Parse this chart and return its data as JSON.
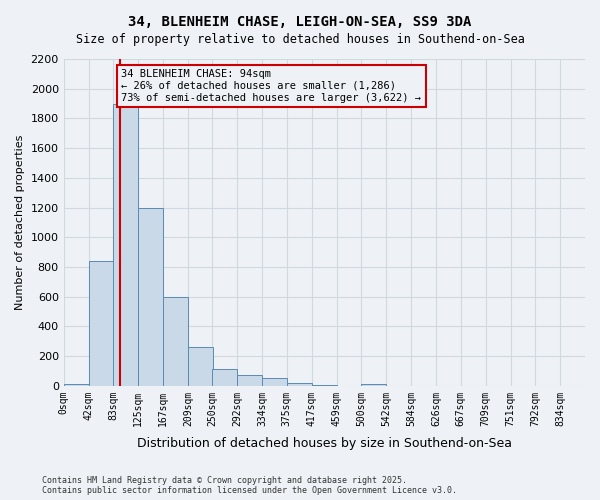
{
  "title1": "34, BLENHEIM CHASE, LEIGH-ON-SEA, SS9 3DA",
  "title2": "Size of property relative to detached houses in Southend-on-Sea",
  "xlabel": "Distribution of detached houses by size in Southend-on-Sea",
  "ylabel": "Number of detached properties",
  "footnote": "Contains HM Land Registry data © Crown copyright and database right 2025.\nContains public sector information licensed under the Open Government Licence v3.0.",
  "bin_labels": [
    "0sqm",
    "42sqm",
    "83sqm",
    "125sqm",
    "167sqm",
    "209sqm",
    "250sqm",
    "292sqm",
    "334sqm",
    "375sqm",
    "417sqm",
    "459sqm",
    "500sqm",
    "542sqm",
    "584sqm",
    "626sqm",
    "667sqm",
    "709sqm",
    "751sqm",
    "792sqm",
    "834sqm"
  ],
  "bin_edges": [
    0,
    42,
    83,
    125,
    167,
    209,
    250,
    292,
    334,
    375,
    417,
    459,
    500,
    542,
    584,
    626,
    667,
    709,
    751,
    792,
    834
  ],
  "bar_values": [
    10,
    840,
    1900,
    1200,
    600,
    260,
    110,
    70,
    50,
    20,
    5,
    0,
    10,
    0,
    0,
    0,
    0,
    0,
    0,
    0
  ],
  "bar_color": "#c9d9e8",
  "bar_edge_color": "#5a8ab5",
  "grid_color": "#d0d8e0",
  "bg_color": "#eef2f7",
  "red_line_x": 94,
  "red_line_color": "#cc0000",
  "annotation_text": "34 BLENHEIM CHASE: 94sqm\n← 26% of detached houses are smaller (1,286)\n73% of semi-detached houses are larger (3,622) →",
  "ylim": [
    0,
    2200
  ],
  "yticks": [
    0,
    200,
    400,
    600,
    800,
    1000,
    1200,
    1400,
    1600,
    1800,
    2000,
    2200
  ]
}
